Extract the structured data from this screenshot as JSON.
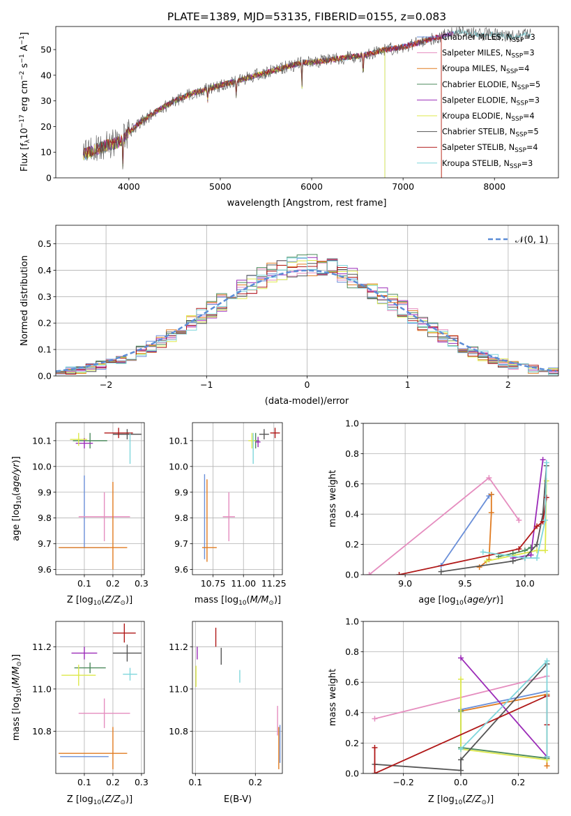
{
  "figure_title": "PLATE=1389, MJD=53135, FIBERID=0155, z=0.083",
  "colors": {
    "Chabrier MILES": "#6a8fd8",
    "Salpeter MILES": "#e58dbf",
    "Kroupa MILES": "#e07b20",
    "Chabrier ELODIE": "#4c8a5c",
    "Salpeter ELODIE": "#9b2bb8",
    "Kroupa ELODIE": "#dde84a",
    "Chabrier STELIB": "#555555",
    "Salpeter STELIB": "#b01818",
    "Kroupa STELIB": "#7fd6dc",
    "normal": "#5b8cd6"
  },
  "chart_data": [
    {
      "id": "spectrum",
      "type": "line",
      "xlabel": "wavelength [Angstrom, rest frame]",
      "ylabel": "Flux [f",
      "xlim": [
        3200,
        8700
      ],
      "ylim": [
        0,
        59
      ],
      "xticks": [
        4000,
        5000,
        6000,
        7000,
        8000
      ],
      "yticks": [
        0,
        10,
        20,
        30,
        40,
        50
      ],
      "legend_position": "right",
      "legend": [
        {
          "label": "Chabrier MILES, N",
          "n": "=3"
        },
        {
          "label": "Salpeter MILES, N",
          "n": "=3"
        },
        {
          "label": "Kroupa MILES, N",
          "n": "=4"
        },
        {
          "label": "Chabrier ELODIE, N",
          "n": "=5"
        },
        {
          "label": "Salpeter ELODIE, N",
          "n": "=3"
        },
        {
          "label": "Kroupa ELODIE, N",
          "n": "=4"
        },
        {
          "label": "Chabrier STELIB, N",
          "n": "=5"
        },
        {
          "label": "Salpeter STELIB, N",
          "n": "=4"
        },
        {
          "label": "Kroupa STELIB, N",
          "n": "=3"
        }
      ],
      "continuum": [
        [
          3500,
          9
        ],
        [
          3700,
          12
        ],
        [
          3900,
          14
        ],
        [
          4100,
          21
        ],
        [
          4300,
          26
        ],
        [
          4500,
          30
        ],
        [
          4700,
          33
        ],
        [
          4900,
          35
        ],
        [
          5100,
          37
        ],
        [
          5300,
          39
        ],
        [
          5500,
          41
        ],
        [
          5700,
          43
        ],
        [
          5900,
          45
        ],
        [
          6000,
          45
        ],
        [
          6200,
          46
        ],
        [
          6400,
          47
        ],
        [
          6600,
          48
        ],
        [
          6800,
          50
        ],
        [
          7000,
          51
        ],
        [
          7200,
          53
        ],
        [
          7400,
          55
        ],
        [
          7600,
          57
        ],
        [
          7800,
          56
        ],
        [
          8000,
          56
        ],
        [
          8200,
          55
        ],
        [
          8400,
          56
        ]
      ],
      "absorption_lines": [
        [
          3934,
          4
        ],
        [
          4861,
          30
        ],
        [
          5175,
          32
        ],
        [
          5893,
          35
        ],
        [
          6563,
          40
        ]
      ],
      "model_cutoffs": [
        [
          6800,
          "Kroupa ELODIE"
        ],
        [
          6800,
          "Chabrier ELODIE"
        ],
        [
          7420,
          "Salpeter STELIB"
        ],
        [
          7420,
          "Kroupa MILES"
        ]
      ]
    },
    {
      "id": "residual_histogram",
      "type": "bar",
      "xlabel": "(data-model)/error",
      "ylabel": "Normed distribution",
      "xlim": [
        -2.5,
        2.5
      ],
      "ylim": [
        0,
        0.57
      ],
      "xticks": [
        -2,
        -1,
        0,
        1,
        2
      ],
      "yticks": [
        0.0,
        0.1,
        0.2,
        0.3,
        0.4,
        0.5
      ],
      "bin_width": 0.1,
      "legend": [
        {
          "label": "𝒩(0, 1)",
          "style": "dashed"
        }
      ],
      "legend_position": "top-right",
      "reference_curve": "normal(0, 1)"
    },
    {
      "id": "age_vs_Z",
      "type": "scatter",
      "xlabel": "Z [log",
      "ylabel": "age  [log",
      "xlim": [
        0.0,
        0.31
      ],
      "ylim": [
        9.58,
        10.17
      ],
      "xticks": [
        0.1,
        0.2,
        0.3
      ],
      "yticks": [
        9.6,
        9.7,
        9.8,
        9.9,
        10.0,
        10.1
      ],
      "points": [
        {
          "series": "Chabrier MILES",
          "x": 0.1,
          "y": 9.685,
          "xerr": 0.085,
          "yerr": [
            0.0,
            0.28
          ]
        },
        {
          "series": "Salpeter MILES",
          "x": 0.17,
          "y": 9.805,
          "xerr": 0.09,
          "yerr": 0.095
        },
        {
          "series": "Kroupa MILES",
          "x": 0.13,
          "y": 9.685,
          "xerr": 0.12,
          "yerr": 0.0
        },
        {
          "series": "Kroupa MILES",
          "x": 0.2,
          "y": 9.79,
          "xerr": 0.0,
          "yerr": [
            0.19,
            0.15
          ]
        },
        {
          "series": "Chabrier ELODIE",
          "x": 0.12,
          "y": 10.1,
          "xerr": 0.06,
          "yerr": 0.03
        },
        {
          "series": "Salpeter ELODIE",
          "x": 0.1,
          "y": 10.09,
          "xerr": 0.03,
          "yerr": 0.02
        },
        {
          "series": "Kroupa ELODIE",
          "x": 0.08,
          "y": 10.105,
          "xerr": 0.03,
          "yerr": 0.025
        },
        {
          "series": "Chabrier STELIB",
          "x": 0.25,
          "y": 10.125,
          "xerr": 0.05,
          "yerr": 0.02
        },
        {
          "series": "Salpeter STELIB",
          "x": 0.22,
          "y": 10.13,
          "xerr": 0.05,
          "yerr": 0.02
        },
        {
          "series": "Kroupa STELIB",
          "x": 0.26,
          "y": 10.07,
          "xerr": 0.0,
          "yerr": 0.06
        }
      ]
    },
    {
      "id": "age_vs_mass",
      "type": "scatter",
      "xlabel": "mass [log",
      "ylabel": "",
      "xlim": [
        10.58,
        11.32
      ],
      "ylim": [
        9.58,
        10.17
      ],
      "xticks": [
        10.75,
        11.0,
        11.25
      ],
      "yticks": [
        9.6,
        9.7,
        9.8,
        9.9,
        10.0,
        10.1
      ],
      "points": [
        {
          "series": "Chabrier MILES",
          "x": 10.68,
          "y": 9.8,
          "xerr": 0.0,
          "yerr": [
            0.16,
            0.17
          ]
        },
        {
          "series": "Kroupa MILES",
          "x": 10.7,
          "y": 9.8,
          "xerr": 0.0,
          "yerr": [
            0.17,
            0.15
          ]
        },
        {
          "series": "Kroupa MILES",
          "x": 10.72,
          "y": 9.685,
          "xerr": 0.06,
          "yerr": 0.0
        },
        {
          "series": "Salpeter MILES",
          "x": 10.88,
          "y": 9.805,
          "xerr": 0.05,
          "yerr": 0.095
        },
        {
          "series": "Chabrier ELODIE",
          "x": 11.1,
          "y": 10.1,
          "xerr": 0.03,
          "yerr": 0.03
        },
        {
          "series": "Kroupa ELODIE",
          "x": 11.07,
          "y": 10.1,
          "xerr": 0.03,
          "yerr": 0.03
        },
        {
          "series": "Kroupa STELIB",
          "x": 11.08,
          "y": 10.07,
          "xerr": 0.0,
          "yerr": 0.06
        },
        {
          "series": "Salpeter ELODIE",
          "x": 11.12,
          "y": 10.095,
          "xerr": 0.02,
          "yerr": 0.02
        },
        {
          "series": "Chabrier STELIB",
          "x": 11.17,
          "y": 10.125,
          "xerr": 0.04,
          "yerr": 0.02
        },
        {
          "series": "Salpeter STELIB",
          "x": 11.26,
          "y": 10.13,
          "xerr": 0.04,
          "yerr": 0.02
        }
      ]
    },
    {
      "id": "mass_weight_vs_age",
      "type": "line",
      "xlabel": "age  [log",
      "ylabel": "mass weight",
      "xlim": [
        8.65,
        10.28
      ],
      "ylim": [
        0,
        1.0
      ],
      "xticks": [
        9.0,
        9.5,
        10.0
      ],
      "yticks": [
        0.0,
        0.2,
        0.4,
        0.6,
        0.8,
        1.0
      ],
      "series": [
        {
          "name": "Chabrier MILES",
          "x": [
            9.3,
            9.7,
            9.72
          ],
          "y": [
            0.06,
            0.52,
            0.53
          ]
        },
        {
          "name": "Salpeter MILES",
          "x": [
            8.7,
            9.7,
            9.95
          ],
          "y": [
            0.0,
            0.64,
            0.36
          ]
        },
        {
          "name": "Kroupa MILES",
          "x": [
            9.62,
            9.7,
            9.72,
            9.72
          ],
          "y": [
            0.05,
            0.1,
            0.41,
            0.53
          ]
        },
        {
          "name": "Chabrier ELODIE",
          "x": [
            9.78,
            9.9,
            10.0,
            10.05
          ],
          "y": [
            0.12,
            0.14,
            0.16,
            0.18
          ]
        },
        {
          "name": "Salpeter ELODIE",
          "x": [
            9.9,
            10.05,
            10.15
          ],
          "y": [
            0.11,
            0.13,
            0.76
          ]
        },
        {
          "name": "Kroupa ELODIE",
          "x": [
            9.68,
            10.1,
            10.17,
            10.18
          ],
          "y": [
            0.09,
            0.16,
            0.16,
            0.62
          ]
        },
        {
          "name": "Chabrier STELIB",
          "x": [
            9.3,
            9.9,
            10.0,
            10.1,
            10.15,
            10.18
          ],
          "y": [
            0.02,
            0.09,
            0.11,
            0.2,
            0.4,
            0.72
          ]
        },
        {
          "name": "Salpeter STELIB",
          "x": [
            8.95,
            9.95,
            10.1,
            10.15,
            10.18
          ],
          "y": [
            0.0,
            0.17,
            0.32,
            0.35,
            0.51
          ]
        },
        {
          "name": "Kroupa STELIB",
          "x": [
            9.65,
            10.0,
            10.1,
            10.17,
            10.18
          ],
          "y": [
            0.15,
            0.11,
            0.11,
            0.36,
            0.74
          ]
        }
      ]
    },
    {
      "id": "mass_vs_Z",
      "type": "scatter",
      "xlabel": "Z [log",
      "ylabel": "mass [log",
      "xlim": [
        0.0,
        0.31
      ],
      "ylim": [
        10.6,
        11.32
      ],
      "xticks": [
        0.1,
        0.2,
        0.3
      ],
      "yticks": [
        10.8,
        11.0,
        11.2
      ],
      "points": [
        {
          "series": "Chabrier MILES",
          "x": 0.1,
          "y": 10.68,
          "xerr": 0.085,
          "yerr": 0.0
        },
        {
          "series": "Kroupa MILES",
          "x": 0.13,
          "y": 10.695,
          "xerr": 0.12,
          "yerr": 0.0
        },
        {
          "series": "Kroupa MILES",
          "x": 0.2,
          "y": 10.72,
          "xerr": 0.0,
          "yerr": 0.1
        },
        {
          "series": "Salpeter MILES",
          "x": 0.17,
          "y": 10.885,
          "xerr": 0.09,
          "yerr": 0.07
        },
        {
          "series": "Salpeter ELODIE",
          "x": 0.1,
          "y": 11.17,
          "xerr": 0.045,
          "yerr": 0.03
        },
        {
          "series": "Chabrier ELODIE",
          "x": 0.12,
          "y": 11.1,
          "xerr": 0.055,
          "yerr": 0.025
        },
        {
          "series": "Kroupa ELODIE",
          "x": 0.08,
          "y": 11.065,
          "xerr": 0.06,
          "yerr": 0.05
        },
        {
          "series": "Chabrier STELIB",
          "x": 0.25,
          "y": 11.17,
          "xerr": 0.05,
          "yerr": 0.04
        },
        {
          "series": "Salpeter STELIB",
          "x": 0.24,
          "y": 11.265,
          "xerr": 0.04,
          "yerr": 0.045
        },
        {
          "series": "Kroupa STELIB",
          "x": 0.26,
          "y": 11.07,
          "xerr": 0.025,
          "yerr": 0.03
        }
      ]
    },
    {
      "id": "mass_vs_EBV",
      "type": "scatter",
      "xlabel": "E(B-V)",
      "ylabel": "",
      "xlim": [
        0.095,
        0.245
      ],
      "ylim": [
        10.6,
        11.32
      ],
      "xticks": [
        0.1,
        0.2
      ],
      "yticks": [
        10.8,
        11.0,
        11.2
      ],
      "points": [
        {
          "series": "Kroupa ELODIE",
          "x": 0.101,
          "y": 11.06,
          "xerr": 0.0,
          "yerr": 0.05
        },
        {
          "series": "Salpeter ELODIE",
          "x": 0.103,
          "y": 11.17,
          "xerr": 0.0,
          "yerr": 0.03
        },
        {
          "series": "Salpeter STELIB",
          "x": 0.134,
          "y": 11.245,
          "xerr": 0.0,
          "yerr": 0.045
        },
        {
          "series": "Chabrier STELIB",
          "x": 0.143,
          "y": 11.155,
          "xerr": 0.0,
          "yerr": 0.04
        },
        {
          "series": "Kroupa STELIB",
          "x": 0.174,
          "y": 11.06,
          "xerr": 0.0,
          "yerr": 0.03
        },
        {
          "series": "Salpeter MILES",
          "x": 0.237,
          "y": 10.85,
          "xerr": 0.0,
          "yerr": 0.07
        },
        {
          "series": "Kroupa MILES",
          "x": 0.239,
          "y": 10.72,
          "xerr": 0.0,
          "yerr": 0.1
        },
        {
          "series": "Chabrier MILES",
          "x": 0.241,
          "y": 10.74,
          "xerr": 0.0,
          "yerr": 0.09
        }
      ]
    },
    {
      "id": "mass_weight_vs_Z",
      "type": "line",
      "xlabel": "Z [log",
      "ylabel": "mass weight",
      "xlim": [
        -0.34,
        0.34
      ],
      "ylim": [
        0,
        1.0
      ],
      "xticks": [
        -0.2,
        0.0,
        0.2
      ],
      "yticks": [
        0.0,
        0.2,
        0.4,
        0.6,
        0.8,
        1.0
      ],
      "series": [
        {
          "name": "Chabrier MILES",
          "x": [
            0.0,
            0.3
          ],
          "y": [
            0.42,
            0.54
          ]
        },
        {
          "name": "Salpeter MILES",
          "x": [
            -0.3,
            0.3
          ],
          "y": [
            0.36,
            0.64
          ]
        },
        {
          "name": "Kroupa MILES",
          "x": [
            0.0,
            0.3,
            0.3
          ],
          "y": [
            0.41,
            0.52,
            0.05
          ]
        },
        {
          "name": "Chabrier ELODIE",
          "x": [
            0.0,
            0.0,
            0.3
          ],
          "y": [
            0.41,
            0.17,
            0.1
          ]
        },
        {
          "name": "Salpeter ELODIE",
          "x": [
            0.0,
            0.3
          ],
          "y": [
            0.76,
            0.11
          ]
        },
        {
          "name": "Kroupa ELODIE",
          "x": [
            0.0,
            0.0,
            0.3
          ],
          "y": [
            0.62,
            0.16,
            0.09
          ]
        },
        {
          "name": "Chabrier STELIB",
          "x": [
            -0.3,
            0.0,
            0.0,
            0.3
          ],
          "y": [
            0.06,
            0.02,
            0.09,
            0.72
          ]
        },
        {
          "name": "Salpeter STELIB",
          "x": [
            -0.3,
            -0.3,
            0.3,
            0.3
          ],
          "y": [
            0.17,
            0.0,
            0.51,
            0.32
          ]
        },
        {
          "name": "Kroupa STELIB",
          "x": [
            0.0,
            0.3,
            0.3
          ],
          "y": [
            0.16,
            0.74,
            0.11
          ]
        }
      ]
    }
  ]
}
